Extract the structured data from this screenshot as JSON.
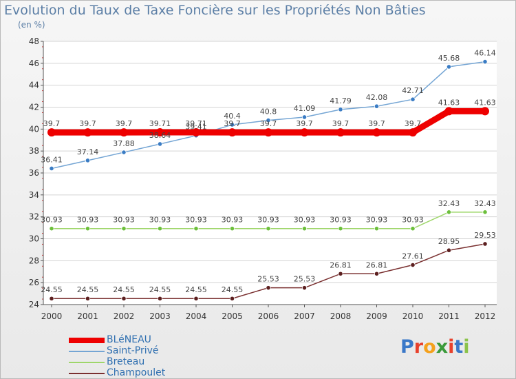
{
  "title": "Evolution du Taux de Taxe Foncière sur les Propriétés Non Bâties",
  "unit": "(en %)",
  "logo": {
    "text": "Proxiti",
    "letters": [
      {
        "ch": "P",
        "color": "#3a78c8"
      },
      {
        "ch": "r",
        "color": "#e8412c"
      },
      {
        "ch": "o",
        "color": "#f4a11d"
      },
      {
        "ch": "x",
        "color": "#3a9a3a"
      },
      {
        "ch": "i",
        "color": "#e8412c"
      },
      {
        "ch": "t",
        "color": "#3a78c8"
      },
      {
        "ch": "i",
        "color": "#8bc34a"
      }
    ]
  },
  "chart_data": {
    "type": "line",
    "title": "Evolution du Taux de Taxe Foncière sur les Propriétés Non Bâties",
    "ylabel": "(en %)",
    "xlabel": "",
    "ylim": [
      24,
      48
    ],
    "yticks": [
      24,
      26,
      28,
      30,
      32,
      34,
      36,
      38,
      40,
      42,
      44,
      46,
      48
    ],
    "x": [
      2000,
      2001,
      2002,
      2003,
      2004,
      2005,
      2006,
      2007,
      2008,
      2009,
      2010,
      2011,
      2012
    ],
    "grid": "horizontal",
    "legend_position": "bottom-left",
    "series": [
      {
        "name": "BLéNEAU",
        "color": "#ee0000",
        "width": 9,
        "values": [
          39.7,
          39.7,
          39.7,
          39.71,
          39.71,
          39.7,
          39.7,
          39.7,
          39.7,
          39.7,
          39.7,
          41.63,
          41.63
        ],
        "labels": [
          "39.7",
          "39.7",
          "39.7",
          "39.71",
          "39.71",
          "39.7",
          "39.7",
          "39.7",
          "39.7",
          "39.7",
          "39.7",
          "41.63",
          "41.63"
        ]
      },
      {
        "name": "Saint-Privé",
        "color": "#74a5d4",
        "dot": "#3a7cc4",
        "width": 1.5,
        "values": [
          36.41,
          37.14,
          37.88,
          38.64,
          39.41,
          40.4,
          40.8,
          41.09,
          41.79,
          42.08,
          42.71,
          45.68,
          46.14
        ],
        "labels": [
          "36.41",
          "37.14",
          "37.88",
          "38.64",
          "39.41",
          "40.4",
          "40.8",
          "41.09",
          "41.79",
          "42.08",
          "42.71",
          "45.68",
          "46.14"
        ]
      },
      {
        "name": "Breteau",
        "color": "#9ed66a",
        "dot": "#6cbf3c",
        "width": 1.5,
        "values": [
          30.93,
          30.93,
          30.93,
          30.93,
          30.93,
          30.93,
          30.93,
          30.93,
          30.93,
          30.93,
          30.93,
          32.43,
          32.43
        ],
        "labels": [
          "30.93",
          "30.93",
          "30.93",
          "30.93",
          "30.93",
          "30.93",
          "30.93",
          "30.93",
          "30.93",
          "30.93",
          "30.93",
          "32.43",
          "32.43"
        ]
      },
      {
        "name": "Champoulet",
        "color": "#7a3030",
        "dot": "#5c1f1f",
        "width": 1.5,
        "values": [
          24.55,
          24.55,
          24.55,
          24.55,
          24.55,
          24.55,
          25.53,
          25.53,
          26.81,
          26.81,
          27.61,
          28.95,
          29.53
        ],
        "labels": [
          "24.55",
          "24.55",
          "24.55",
          "24.55",
          "24.55",
          "24.55",
          "25.53",
          "25.53",
          "26.81",
          "26.81",
          "27.61",
          "28.95",
          "29.53"
        ]
      }
    ]
  }
}
